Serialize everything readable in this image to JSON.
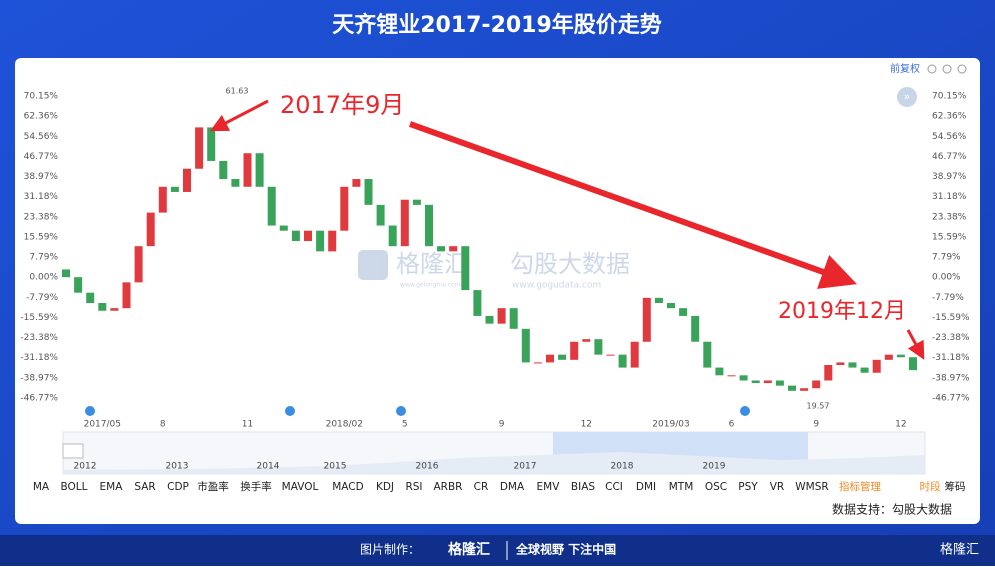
{
  "header": {
    "title": "天齐锂业2017-2019年股价走势"
  },
  "chart_data": {
    "type": "candlestick",
    "toolbar": "前复权",
    "annotations": [
      "2017年9月",
      "2019年12月"
    ],
    "price_labels": [
      "61.63",
      "19.57"
    ],
    "watermarks": [
      "格隆汇",
      "www.gelonghui.com",
      "勾股大数据",
      "www.gogudata.com"
    ],
    "categories": [
      null,
      null,
      null,
      "2017/05",
      null,
      null,
      null,
      null,
      "8",
      null,
      null,
      null,
      null,
      null,
      null,
      "11",
      null,
      null,
      null,
      null,
      null,
      null,
      null,
      "2018/02",
      null,
      null,
      null,
      null,
      "5",
      null,
      null,
      null,
      null,
      null,
      null,
      null,
      "9",
      null,
      null,
      null,
      null,
      null,
      null,
      "12",
      null,
      null,
      null,
      null,
      null,
      null,
      "2019/03",
      null,
      null,
      null,
      null,
      "6",
      null,
      null,
      null,
      null,
      null,
      null,
      "9",
      null,
      null,
      null,
      null,
      null,
      null,
      "12",
      null
    ],
    "open": [
      3,
      0,
      -6,
      -10,
      -13,
      -12,
      -2,
      12,
      25,
      35,
      33,
      42,
      58,
      45,
      38,
      35,
      48,
      35,
      20,
      18,
      14,
      18,
      10,
      18,
      35,
      38,
      28,
      20,
      12,
      30,
      28,
      12,
      10,
      12,
      -5,
      -15,
      -18,
      -12,
      -20,
      -33,
      -33,
      -30,
      -32,
      -25,
      -24,
      -30,
      -30,
      -35,
      -25,
      -8,
      -10,
      -12,
      -15,
      -25,
      -35,
      -38,
      -38,
      -40,
      -41,
      -40,
      -42,
      -44,
      -43,
      -40,
      -34,
      -33,
      -35,
      -37,
      -32,
      -30,
      -31
    ],
    "close": [
      0,
      -6,
      -10,
      -13,
      -12,
      -2,
      12,
      25,
      35,
      33,
      42,
      58,
      45,
      38,
      35,
      48,
      35,
      20,
      18,
      14,
      18,
      10,
      18,
      35,
      38,
      28,
      20,
      12,
      30,
      28,
      12,
      10,
      12,
      -5,
      -15,
      -18,
      -12,
      -20,
      -33,
      -33,
      -30,
      -32,
      -25,
      -24,
      -30,
      -30,
      -35,
      -25,
      -8,
      -10,
      -12,
      -15,
      -25,
      -35,
      -38,
      -38,
      -40,
      -41,
      -40,
      -42,
      -44,
      -43,
      -40,
      -34,
      -33,
      -35,
      -37,
      -32,
      -30,
      -31,
      -36
    ],
    "up_color": "#e0393e",
    "down_color": "#3aa35a",
    "ylim": [
      -50.5,
      75.5
    ],
    "yticks": [
      {
        "value": 70.15,
        "label": "70.15%"
      },
      {
        "value": 62.36,
        "label": "62.36%"
      },
      {
        "value": 54.56,
        "label": "54.56%"
      },
      {
        "value": 46.77,
        "label": "46.77%"
      },
      {
        "value": 38.97,
        "label": "38.97%"
      },
      {
        "value": 31.18,
        "label": "31.18%"
      },
      {
        "value": 23.38,
        "label": "23.38%"
      },
      {
        "value": 15.59,
        "label": "15.59%"
      },
      {
        "value": 7.79,
        "label": "7.79%"
      },
      {
        "value": 0,
        "label": "0.00%"
      },
      {
        "value": -7.79,
        "label": "-7.79%"
      },
      {
        "value": -15.59,
        "label": "-15.59%"
      },
      {
        "value": -23.38,
        "label": "-23.38%"
      },
      {
        "value": -31.18,
        "label": "-31.18%"
      },
      {
        "value": -38.97,
        "label": "-38.97%"
      },
      {
        "value": -46.77,
        "label": "-46.77%"
      }
    ]
  },
  "navigator_years": [
    "2012",
    "2013",
    "2014",
    "2015",
    "2016",
    "2017",
    "2018",
    "2019"
  ],
  "indicators": [
    "MA",
    "BOLL",
    "EMA",
    "SAR",
    "CDP",
    "市盈率",
    "换手率",
    "MAVOL",
    "MACD",
    "KDJ",
    "RSI",
    "ARBR",
    "CR",
    "DMA",
    "EMV",
    "BIAS",
    "CCI",
    "DMI",
    "MTM",
    "OSC",
    "PSY",
    "VR",
    "WMSR",
    "指标管理",
    "时段",
    "筹码"
  ],
  "source": "数据支持：勾股大数据",
  "footer": {
    "maker": "图片制作：",
    "brand": "格隆汇",
    "slogan": "全球视野 下注中国",
    "corner": "格隆汇"
  }
}
